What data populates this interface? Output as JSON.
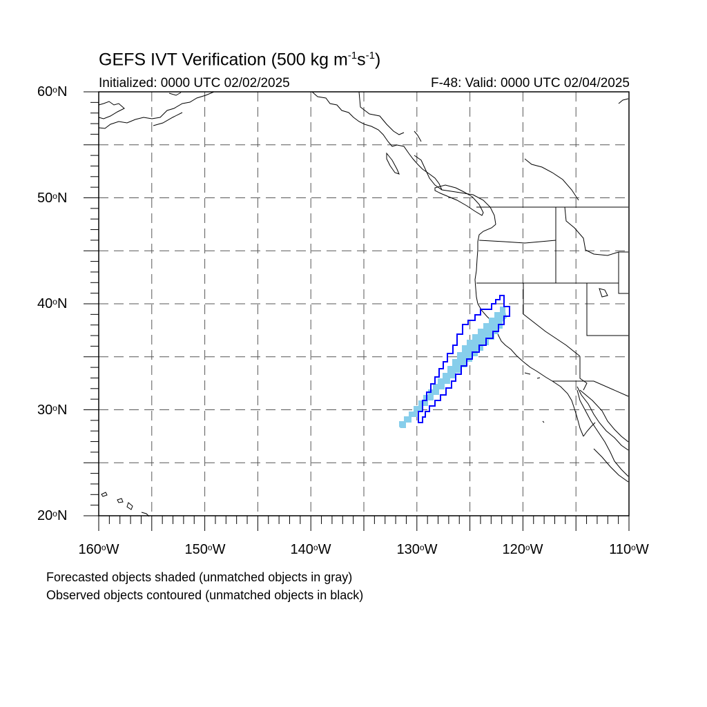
{
  "title": {
    "prefix": "GEFS IVT Verification (500 kg m",
    "exp1": "-1",
    "mid": "s",
    "exp2": "-1",
    "suffix": ")"
  },
  "initialized": "Initialized: 0000 UTC 02/02/2025",
  "valid": "F-48: Valid: 0000 UTC 02/04/2025",
  "latitude_labels": [
    {
      "deg": "60",
      "hem": "N"
    },
    {
      "deg": "50",
      "hem": "N"
    },
    {
      "deg": "40",
      "hem": "N"
    },
    {
      "deg": "30",
      "hem": "N"
    },
    {
      "deg": "20",
      "hem": "N"
    }
  ],
  "longitude_labels": [
    {
      "deg": "160",
      "hem": "W"
    },
    {
      "deg": "150",
      "hem": "W"
    },
    {
      "deg": "140",
      "hem": "W"
    },
    {
      "deg": "130",
      "hem": "W"
    },
    {
      "deg": "120",
      "hem": "W"
    },
    {
      "deg": "110",
      "hem": "W"
    }
  ],
  "notes": [
    "Forecasted objects shaded (unmatched objects in gray)",
    "Observed objects contoured (unmatched objects in black)"
  ],
  "map_extent": {
    "lon_min": -160,
    "lon_max": -110,
    "lat_min": 20,
    "lat_max": 60
  },
  "grid": {
    "spacing_deg": 5,
    "style": "dashed"
  },
  "colors": {
    "forecast_shading": "#87ceeb",
    "observed_contour": "#0000ff",
    "coastline": "#000000",
    "grid": "#555555"
  }
}
